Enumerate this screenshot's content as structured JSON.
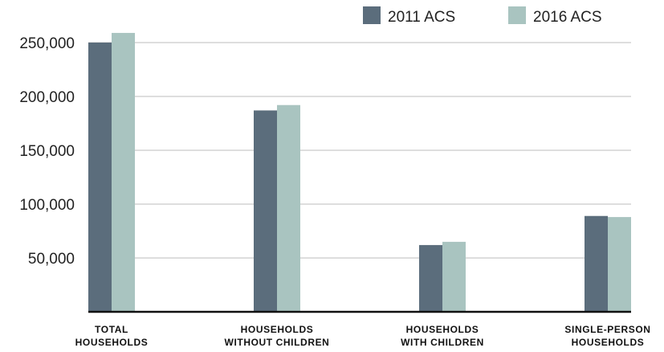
{
  "chart_data": {
    "type": "bar",
    "title": "",
    "xlabel": "",
    "ylabel": "",
    "categories": [
      [
        "TOTAL",
        "HOUSEHOLDS"
      ],
      [
        "HOUSEHOLDS",
        "WITHOUT CHILDREN"
      ],
      [
        "HOUSEHOLDS",
        "WITH CHILDREN"
      ],
      [
        "SINGLE-PERSON",
        "HOUSEHOLDS"
      ]
    ],
    "series": [
      {
        "name": "2011 ACS",
        "color": "#5b6d7c",
        "values": [
          250000,
          187000,
          62000,
          89000
        ]
      },
      {
        "name": "2016 ACS",
        "color": "#a9c4c0",
        "values": [
          259000,
          192000,
          65000,
          88000
        ]
      }
    ],
    "ylim": [
      0,
      262000
    ],
    "yticks": [
      50000,
      100000,
      150000,
      200000,
      250000
    ],
    "ytick_labels": [
      "50,000",
      "100,000",
      "150,000",
      "200,000",
      "250,000"
    ],
    "grid": true,
    "legend_position": "top-right"
  }
}
